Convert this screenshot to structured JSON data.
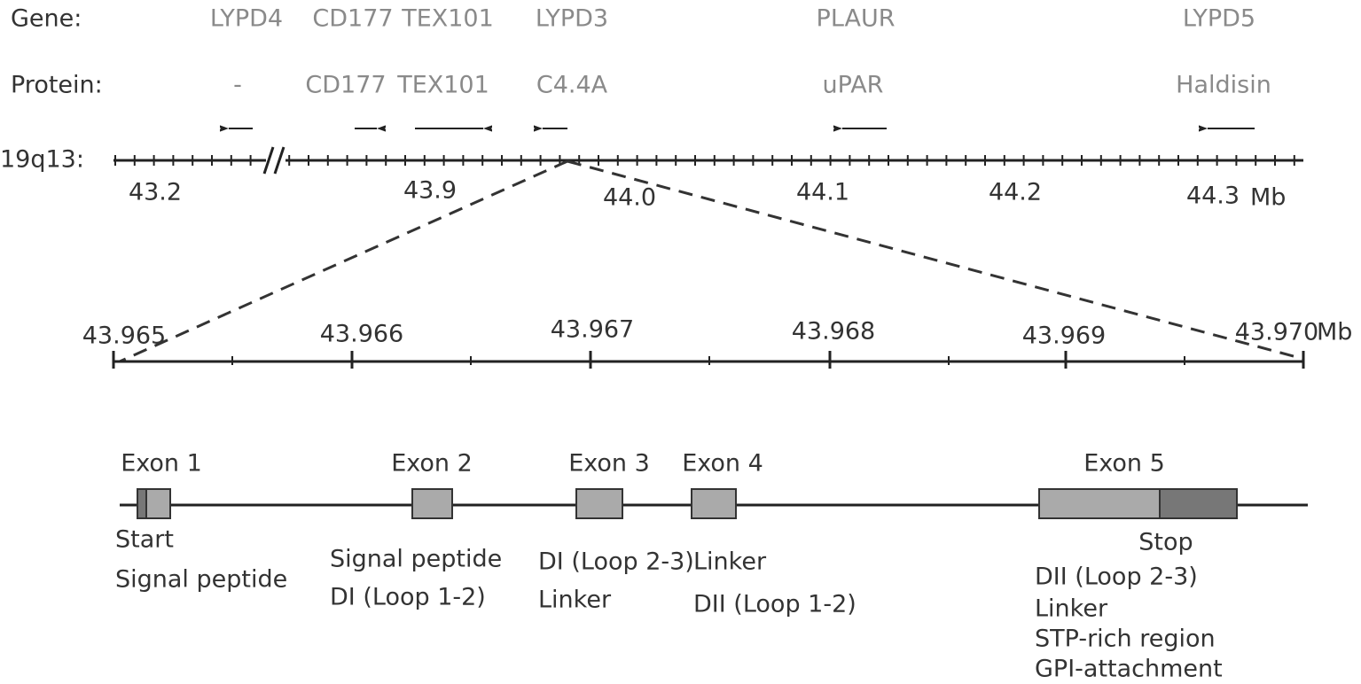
{
  "row_labels": {
    "gene": "Gene:",
    "protein": "Protein:",
    "locus": "19q13:"
  },
  "genes": [
    {
      "gene": "LYPD4",
      "protein": "-"
    },
    {
      "gene": "CD177",
      "protein": "CD177"
    },
    {
      "gene": "TEX101",
      "protein": "TEX101"
    },
    {
      "gene": "LYPD3",
      "protein": "C4.4A"
    },
    {
      "gene": "PLAUR",
      "protein": "uPAR"
    },
    {
      "gene": "LYPD5",
      "protein": "Haldisin"
    }
  ],
  "locus_scale": {
    "ticks": [
      "43.2",
      "43.9",
      "44.0",
      "44.1",
      "44.2",
      "44.3"
    ],
    "unit": "Mb"
  },
  "zoom_scale": {
    "ticks": [
      "43.965",
      "43.966",
      "43.967",
      "43.968",
      "43.969",
      "43.970"
    ],
    "unit": "Mb"
  },
  "exons": [
    {
      "label": "Exon 1",
      "notes": [
        "Start",
        "Signal peptide"
      ]
    },
    {
      "label": "Exon 2",
      "notes": [
        "Signal peptide",
        "DI (Loop 1-2)"
      ]
    },
    {
      "label": "Exon 3",
      "notes": [
        "DI (Loop 2-3)",
        "Linker"
      ]
    },
    {
      "label": "Exon 4",
      "notes": [
        "Linker",
        "DII (Loop 1-2)"
      ]
    },
    {
      "label": "Exon 5",
      "stop": "Stop",
      "notes": [
        "DII (Loop 2-3)",
        "Linker",
        "STP-rich region",
        "GPI-attachment"
      ]
    }
  ]
}
